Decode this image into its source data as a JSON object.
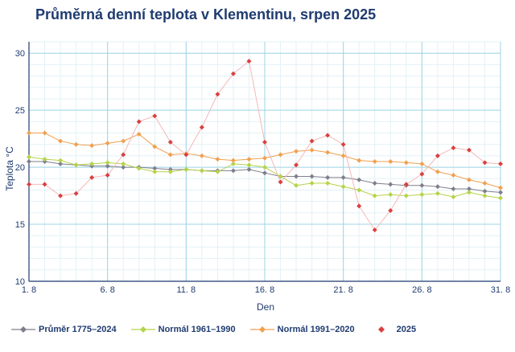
{
  "title": "Průměrná denní teplota v Klementinu, srpen 2025",
  "chart_data": {
    "type": "line",
    "title": "Průměrná denní teplota v Klementinu, srpen 2025",
    "xlabel": "Den",
    "ylabel": "Teplota °C",
    "x": [
      1,
      2,
      3,
      4,
      5,
      6,
      7,
      8,
      9,
      10,
      11,
      12,
      13,
      14,
      15,
      16,
      17,
      18,
      19,
      20,
      21,
      22,
      23,
      24,
      25,
      26,
      27,
      28,
      29,
      30,
      31
    ],
    "x_tick_labels": [
      "1. 8",
      "6. 8",
      "11. 8",
      "16. 8",
      "21. 8",
      "26. 8",
      "31. 8"
    ],
    "x_tick_values": [
      1,
      6,
      11,
      16,
      21,
      26,
      31
    ],
    "xlim": [
      1,
      31
    ],
    "ylim": [
      10,
      31
    ],
    "y_ticks": [
      10,
      15,
      20,
      25,
      30
    ],
    "grid": true,
    "legend_position": "bottom",
    "series": [
      {
        "name": "Průměr 1775–2024",
        "color": "#7f7f8c",
        "marker": "diamond",
        "line": true,
        "values": [
          20.5,
          20.5,
          20.3,
          20.2,
          20.1,
          20.1,
          20.0,
          20.0,
          19.9,
          19.8,
          19.8,
          19.7,
          19.7,
          19.7,
          19.8,
          19.5,
          19.2,
          19.2,
          19.2,
          19.1,
          19.1,
          18.9,
          18.6,
          18.5,
          18.4,
          18.4,
          18.3,
          18.1,
          18.1,
          17.9,
          17.8
        ]
      },
      {
        "name": "Normál 1961–1990",
        "color": "#b4d44a",
        "marker": "diamond",
        "line": true,
        "values": [
          20.9,
          20.7,
          20.6,
          20.2,
          20.3,
          20.4,
          20.3,
          19.9,
          19.6,
          19.6,
          19.8,
          19.7,
          19.6,
          20.3,
          20.2,
          20.0,
          19.2,
          18.4,
          18.6,
          18.6,
          18.3,
          18.0,
          17.5,
          17.6,
          17.5,
          17.6,
          17.7,
          17.4,
          17.8,
          17.5,
          17.3
        ]
      },
      {
        "name": "Normál 1991–2020",
        "color": "#f0a050",
        "marker": "diamond",
        "line": true,
        "values": [
          23.0,
          23.0,
          22.3,
          22.0,
          21.9,
          22.1,
          22.3,
          22.9,
          21.8,
          21.1,
          21.2,
          21.0,
          20.7,
          20.6,
          20.7,
          20.8,
          21.1,
          21.4,
          21.5,
          21.3,
          21.0,
          20.6,
          20.5,
          20.5,
          20.4,
          20.3,
          19.6,
          19.3,
          18.9,
          18.6,
          18.2
        ]
      },
      {
        "name": "2025",
        "color": "#d94040",
        "linecolor": "#f4b8b8",
        "marker": "diamond",
        "line": true,
        "values": [
          18.5,
          18.5,
          17.5,
          17.7,
          19.1,
          19.3,
          21.1,
          24.0,
          24.5,
          22.2,
          21.1,
          23.5,
          26.4,
          28.2,
          29.3,
          22.2,
          18.7,
          20.2,
          22.3,
          22.8,
          22.0,
          16.6,
          14.5,
          16.2,
          18.5,
          19.4,
          21.0,
          21.7,
          21.5,
          20.4,
          20.3
        ]
      }
    ]
  }
}
